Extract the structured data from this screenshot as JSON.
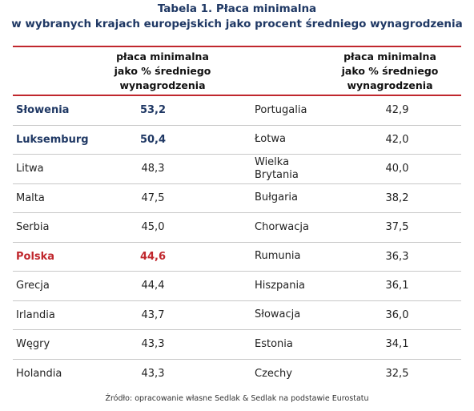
{
  "title": {
    "line1": "Tabela 1. Płaca minimalna",
    "line2": "w wybranych krajach europejskich jako procent średniego wynagrodzenia"
  },
  "headers": {
    "left": [
      "płaca minimalna",
      "jako % średniego",
      "wynagrodzenia"
    ],
    "right": [
      "płaca minimalna",
      "jako % średniego",
      "wynagrodzenia"
    ]
  },
  "rows": [
    {
      "c1": "Słowenia",
      "v1": "53,2",
      "c2": "Portugalia",
      "v2": "42,9",
      "style": "navy"
    },
    {
      "c1": "Luksemburg",
      "v1": "50,4",
      "c2": "Łotwa",
      "v2": "42,0",
      "style": "navy"
    },
    {
      "c1": "Litwa",
      "v1": "48,3",
      "c2": "Wielka\nBrytania",
      "v2": "40,0",
      "style": ""
    },
    {
      "c1": "Malta",
      "v1": "47,5",
      "c2": "Bułgaria",
      "v2": "38,2",
      "style": ""
    },
    {
      "c1": "Serbia",
      "v1": "45,0",
      "c2": "Chorwacja",
      "v2": "37,5",
      "style": ""
    },
    {
      "c1": "Polska",
      "v1": "44,6",
      "c2": "Rumunia",
      "v2": "36,3",
      "style": "red"
    },
    {
      "c1": "Grecja",
      "v1": "44,4",
      "c2": "Hiszpania",
      "v2": "36,1",
      "style": ""
    },
    {
      "c1": "Irlandia",
      "v1": "43,7",
      "c2": "Słowacja",
      "v2": "36,0",
      "style": ""
    },
    {
      "c1": "Węgry",
      "v1": "43,3",
      "c2": "Estonia",
      "v2": "34,1",
      "style": ""
    },
    {
      "c1": "Holandia",
      "v1": "43,3",
      "c2": "Czechy",
      "v2": "32,5",
      "style": ""
    }
  ],
  "source": "Źródło: opracowanie własne Sedlak & Sedlak na podstawie Eurostatu",
  "colors": {
    "title": "#1f3864",
    "highlight_red": "#c0272d",
    "rule": "#c0272d"
  }
}
